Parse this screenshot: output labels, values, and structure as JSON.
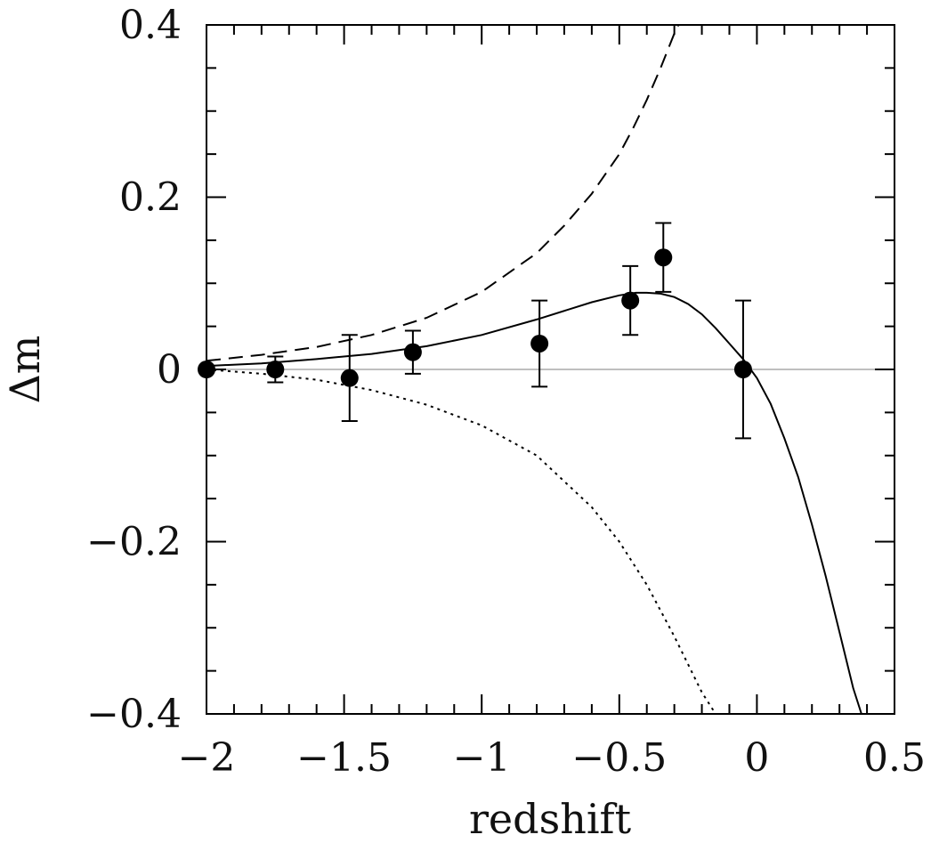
{
  "chart_data": {
    "type": "scatter",
    "title": "",
    "xlabel": "redshift",
    "ylabel": "Δm",
    "xlim": [
      -2,
      0.5
    ],
    "ylim": [
      -0.4,
      0.4
    ],
    "xticks": [
      -2,
      -1.5,
      -1,
      -0.5,
      0,
      0.5
    ],
    "xtick_labels": [
      "−2",
      "−1.5",
      "−1",
      "−0.5",
      "0",
      "0.5"
    ],
    "yticks": [
      -0.4,
      -0.2,
      0,
      0.2,
      0.4
    ],
    "ytick_labels": [
      "−0.4",
      "−0.2",
      "0",
      "0.2",
      "0.4"
    ],
    "x_minor_step": 0.1,
    "y_minor_step": 0.05,
    "grid": false,
    "reference_line": {
      "y": 0,
      "color": "#aaaaaa"
    },
    "series": [
      {
        "name": "data",
        "kind": "points_with_errors",
        "color": "#000000",
        "points": [
          {
            "x": -2.0,
            "y": 0.0,
            "err": 0.0
          },
          {
            "x": -1.75,
            "y": 0.0,
            "err": 0.015
          },
          {
            "x": -1.48,
            "y": -0.01,
            "err": 0.05
          },
          {
            "x": -1.25,
            "y": 0.02,
            "err": 0.025
          },
          {
            "x": -0.79,
            "y": 0.03,
            "err": 0.05
          },
          {
            "x": -0.46,
            "y": 0.08,
            "err": 0.04
          },
          {
            "x": -0.34,
            "y": 0.13,
            "err": 0.04
          },
          {
            "x": -0.05,
            "y": 0.0,
            "err": 0.08
          }
        ]
      },
      {
        "name": "model-solid",
        "kind": "line",
        "dash": "solid",
        "color": "#000000",
        "x": [
          -2.0,
          -1.8,
          -1.6,
          -1.4,
          -1.2,
          -1.0,
          -0.8,
          -0.6,
          -0.5,
          -0.44,
          -0.4,
          -0.35,
          -0.3,
          -0.25,
          -0.2,
          -0.15,
          -0.1,
          -0.05,
          0.0,
          0.05,
          0.1,
          0.15,
          0.2,
          0.25,
          0.3,
          0.35,
          0.38
        ],
        "y": [
          0.004,
          0.007,
          0.012,
          0.018,
          0.027,
          0.04,
          0.058,
          0.078,
          0.086,
          0.089,
          0.089,
          0.088,
          0.084,
          0.076,
          0.064,
          0.048,
          0.03,
          0.012,
          -0.01,
          -0.04,
          -0.08,
          -0.125,
          -0.18,
          -0.24,
          -0.305,
          -0.37,
          -0.4
        ]
      },
      {
        "name": "model-dashed",
        "kind": "line",
        "dash": "dashed",
        "color": "#000000",
        "x": [
          -2.0,
          -1.8,
          -1.6,
          -1.4,
          -1.2,
          -1.0,
          -0.8,
          -0.7,
          -0.6,
          -0.5,
          -0.45,
          -0.4,
          -0.35,
          -0.3,
          -0.27
        ],
        "y": [
          0.01,
          0.017,
          0.026,
          0.04,
          0.06,
          0.09,
          0.135,
          0.167,
          0.204,
          0.25,
          0.28,
          0.313,
          0.35,
          0.39,
          0.41
        ]
      },
      {
        "name": "model-dotted",
        "kind": "line",
        "dash": "dotted",
        "color": "#000000",
        "x": [
          -2.0,
          -1.8,
          -1.6,
          -1.4,
          -1.2,
          -1.0,
          -0.8,
          -0.6,
          -0.5,
          -0.4,
          -0.3,
          -0.2,
          -0.15,
          -0.1
        ],
        "y": [
          0.0,
          -0.005,
          -0.012,
          -0.024,
          -0.041,
          -0.065,
          -0.1,
          -0.16,
          -0.2,
          -0.25,
          -0.31,
          -0.375,
          -0.4,
          -0.41
        ]
      }
    ]
  }
}
